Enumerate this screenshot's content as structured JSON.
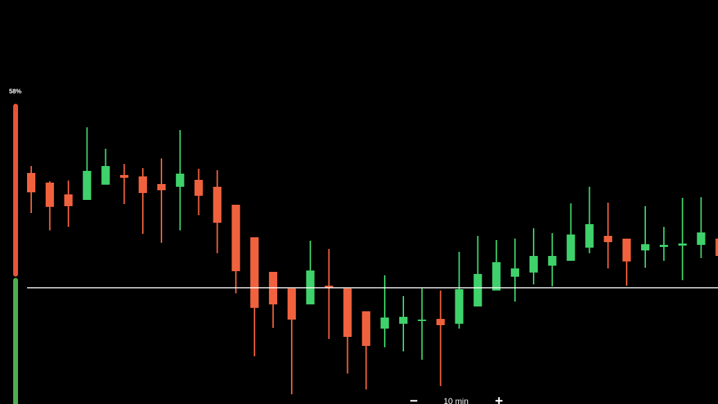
{
  "chart_data": {
    "type": "candlestick",
    "ylim": [
      0,
      584
    ],
    "up_color": "#3fd16b",
    "down_color": "#f0623e",
    "price_line": 168,
    "sentiment": {
      "value": 58,
      "label": "58%",
      "sell_color": "#e8543a",
      "buy_color": "#4cae4f"
    },
    "open": [
      334,
      320,
      303,
      295,
      317,
      331,
      329,
      318,
      314,
      324,
      314,
      288,
      241,
      191,
      167,
      144,
      171,
      167,
      134,
      109,
      116,
      120,
      123,
      116,
      141,
      164,
      184,
      190,
      200,
      207,
      226,
      243,
      239,
      222,
      227,
      229,
      230,
      239
    ],
    "high": [
      344,
      322,
      323,
      400,
      369,
      347,
      341,
      355,
      396,
      340,
      338,
      288,
      241,
      191,
      167,
      236,
      224,
      167,
      134,
      186,
      156,
      167,
      164,
      220,
      243,
      237,
      239,
      254,
      247,
      290,
      314,
      291,
      239,
      286,
      256,
      298,
      299,
      264
    ],
    "low": [
      276,
      251,
      256,
      295,
      317,
      289,
      246,
      233,
      251,
      273,
      218,
      160,
      69,
      110,
      14,
      144,
      94,
      44,
      21,
      82,
      76,
      64,
      26,
      109,
      141,
      164,
      148,
      173,
      170,
      207,
      218,
      196,
      171,
      197,
      207,
      179,
      211,
      214
    ],
    "close": [
      306,
      285,
      286,
      337,
      344,
      327,
      305,
      309,
      333,
      301,
      262,
      192,
      139,
      144,
      122,
      193,
      168,
      97,
      84,
      125,
      126,
      122,
      114,
      166,
      188,
      205,
      196,
      214,
      214,
      245,
      260,
      234,
      206,
      231,
      230,
      232,
      248,
      214
    ],
    "timeframe": {
      "label": "10 min",
      "minus": "−",
      "plus": "+"
    }
  }
}
